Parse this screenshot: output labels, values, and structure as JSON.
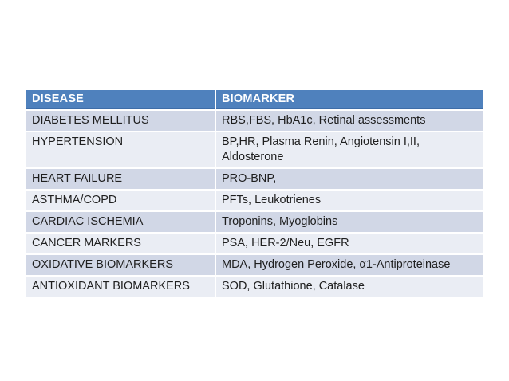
{
  "colors": {
    "page_bg": "#ffffff",
    "header_bg": "#4f81bd",
    "header_text": "#ffffff",
    "row_dark": "#d1d7e6",
    "row_light": "#eaedf4",
    "body_text": "#1f1f1f"
  },
  "table": {
    "columns": [
      {
        "label": "DISEASE"
      },
      {
        "label": "BIOMARKER"
      }
    ],
    "rows": [
      {
        "disease": "DIABETES MELLITUS",
        "biomarker": "RBS,FBS, HbA1c, Retinal assessments"
      },
      {
        "disease": "HYPERTENSION",
        "biomarker": "BP,HR, Plasma Renin, Angiotensin I,II, Aldosterone"
      },
      {
        "disease": "HEART FAILURE",
        "biomarker": "PRO-BNP,"
      },
      {
        "disease": "ASTHMA/COPD",
        "biomarker": "PFTs, Leukotrienes"
      },
      {
        "disease": "CARDIAC ISCHEMIA",
        "biomarker": "Troponins, Myoglobins"
      },
      {
        "disease": "CANCER MARKERS",
        "biomarker": "PSA, HER-2/Neu, EGFR"
      },
      {
        "disease": "OXIDATIVE BIOMARKERS",
        "biomarker": "MDA, Hydrogen Peroxide, α1-Antiproteinase"
      },
      {
        "disease": "ANTIOXIDANT BIOMARKERS",
        "biomarker": "SOD, Glutathione, Catalase"
      }
    ]
  }
}
